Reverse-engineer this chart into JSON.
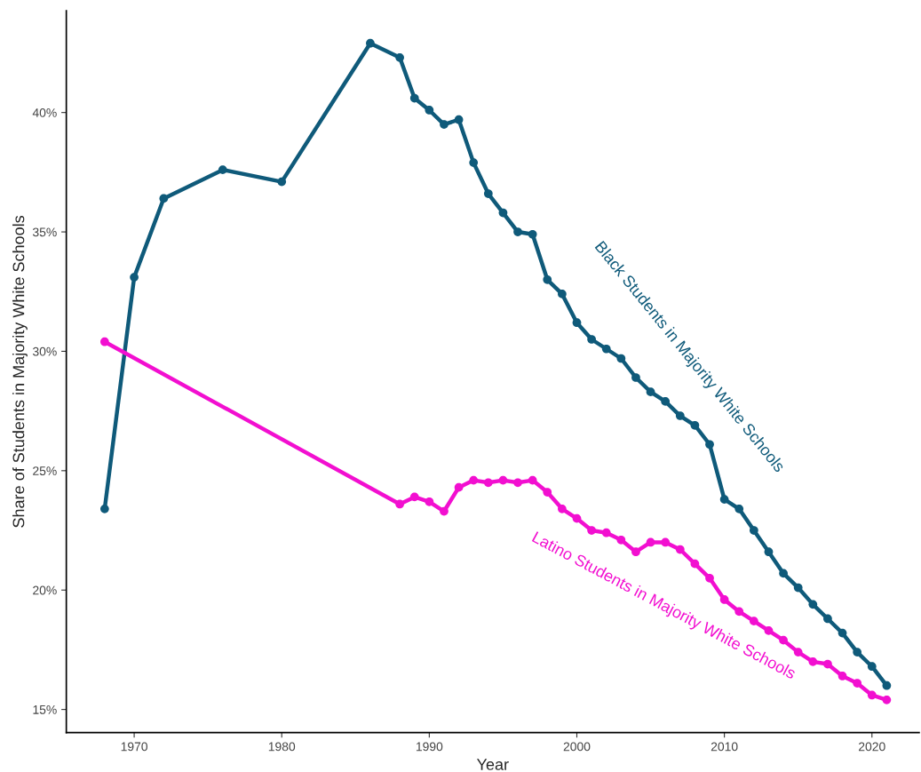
{
  "chart_data": {
    "type": "line",
    "xlabel": "Year",
    "ylabel": "Share of Students in Majority White Schools",
    "x": [
      1968,
      1970,
      1972,
      1976,
      1980,
      1986,
      1988,
      1989,
      1990,
      1991,
      1992,
      1993,
      1994,
      1995,
      1996,
      1997,
      1998,
      1999,
      2000,
      2001,
      2002,
      2003,
      2004,
      2005,
      2006,
      2007,
      2008,
      2009,
      2010,
      2011,
      2012,
      2013,
      2014,
      2015,
      2016,
      2017,
      2018,
      2019,
      2020,
      2021
    ],
    "series": [
      {
        "name": "Black Students in Majority White Schools",
        "color": "#0f5a7a",
        "values": [
          23.4,
          33.1,
          36.4,
          37.6,
          37.1,
          42.9,
          42.3,
          40.6,
          40.1,
          39.5,
          39.7,
          37.9,
          36.6,
          35.8,
          35.0,
          34.9,
          33.0,
          32.4,
          31.2,
          30.5,
          30.1,
          29.7,
          28.9,
          28.3,
          27.9,
          27.3,
          26.9,
          26.1,
          23.8,
          23.4,
          22.5,
          21.6,
          20.7,
          20.1,
          19.4,
          18.8,
          18.2,
          17.4,
          16.8,
          16.0
        ]
      },
      {
        "name": "Latino Students in Majority White Schools",
        "color": "#f20fd0",
        "x": [
          1968,
          1988,
          1989,
          1990,
          1991,
          1992,
          1993,
          1994,
          1995,
          1996,
          1997,
          1998,
          1999,
          2000,
          2001,
          2002,
          2003,
          2004,
          2005,
          2006,
          2007,
          2008,
          2009,
          2010,
          2011,
          2012,
          2013,
          2014,
          2015,
          2016,
          2017,
          2018,
          2019,
          2020,
          2021
        ],
        "values": [
          30.4,
          23.6,
          23.9,
          23.7,
          23.3,
          24.3,
          24.6,
          24.5,
          24.6,
          24.5,
          24.6,
          24.1,
          23.4,
          23.0,
          22.5,
          22.4,
          22.1,
          21.6,
          22.0,
          22.0,
          21.7,
          21.1,
          20.5,
          19.6,
          19.1,
          18.7,
          18.3,
          17.9,
          17.4,
          17.0,
          16.9,
          16.4,
          16.1,
          15.6,
          15.4
        ]
      }
    ],
    "xlim": [
      1965.4,
      2023.2
    ],
    "xticks": [
      1970,
      1980,
      1990,
      2000,
      2010,
      2020
    ],
    "ylim": [
      14.03,
      44.26
    ],
    "yticks": [
      {
        "value": 15,
        "label": "15%"
      },
      {
        "value": 20,
        "label": "20%"
      },
      {
        "value": 25,
        "label": "25%"
      },
      {
        "value": 30,
        "label": "30%"
      },
      {
        "value": 35,
        "label": "35%"
      },
      {
        "value": 40,
        "label": "40%"
      }
    ],
    "marker": "circle",
    "line_style": "solid",
    "grid": false,
    "legend": false
  }
}
